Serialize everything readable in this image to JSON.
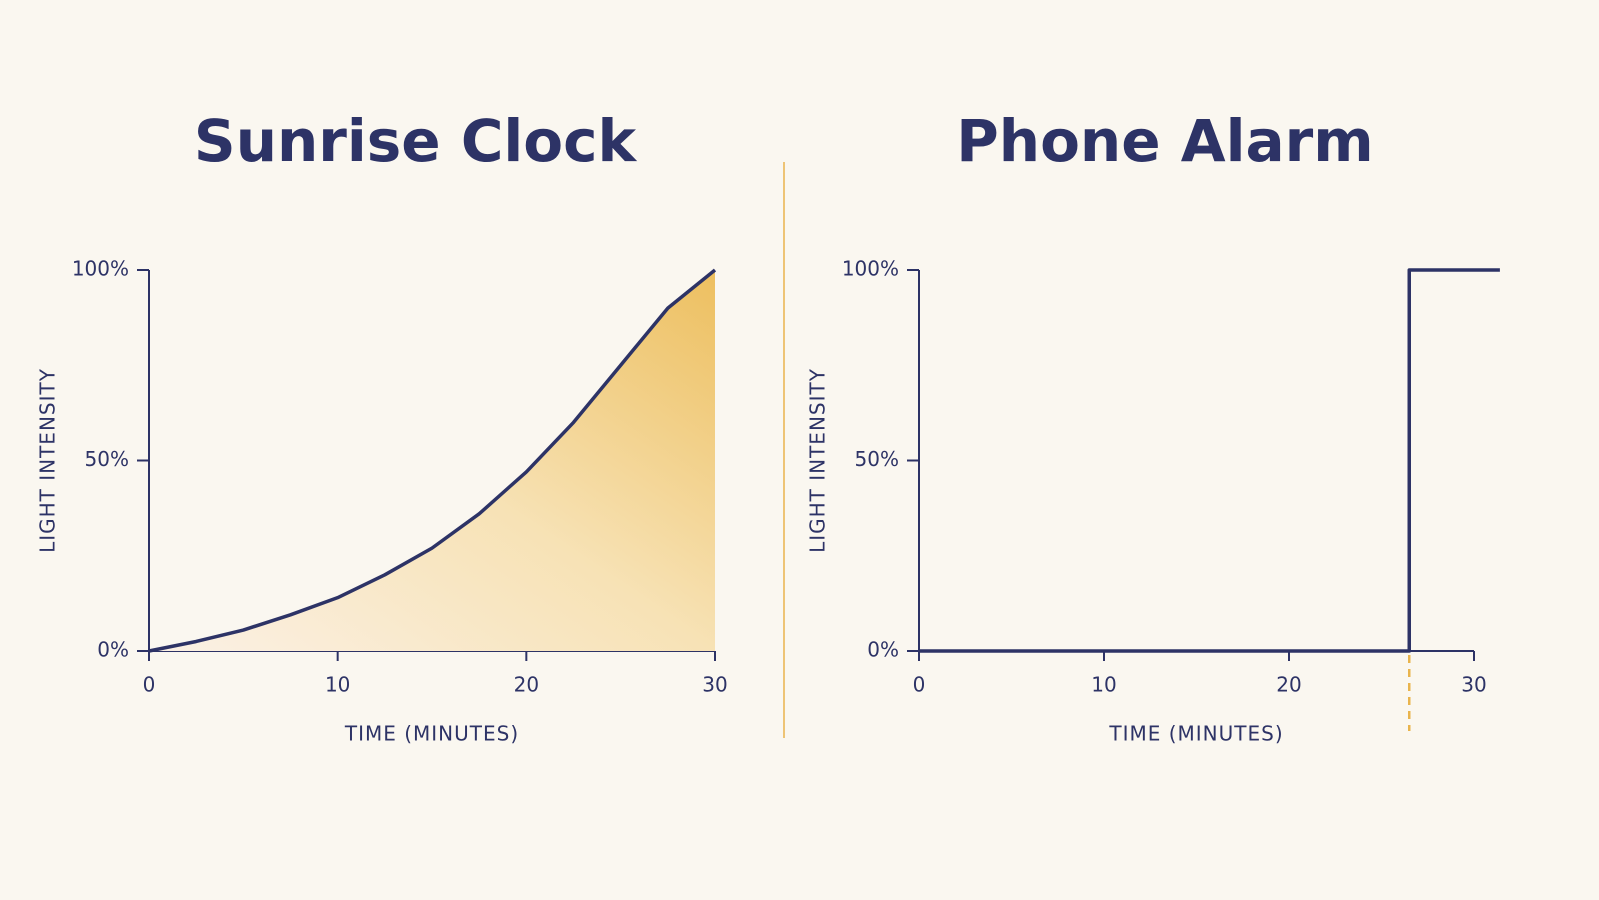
{
  "chart_data": [
    {
      "type": "line",
      "title": "Sunrise Clock",
      "x_label": "TIME (MINUTES)",
      "y_label": "LIGHT INTENSITY",
      "xlim": [
        0,
        30
      ],
      "xticks": [
        0,
        10,
        20,
        30
      ],
      "ylim": [
        0,
        100
      ],
      "yticks": [
        {
          "value": 0,
          "label": "0%"
        },
        {
          "value": 50,
          "label": "50%"
        },
        {
          "value": 100,
          "label": "100%"
        }
      ],
      "area": true,
      "series": [
        {
          "color": "#2d3366",
          "x": [
            0,
            2.5,
            5,
            7.5,
            10,
            12.5,
            15,
            17.5,
            20,
            22.5,
            25,
            27.5,
            30
          ],
          "values": [
            0,
            2.5,
            5.5,
            9.5,
            14,
            20,
            27,
            36,
            47,
            60,
            75,
            90,
            100
          ]
        }
      ]
    },
    {
      "type": "line",
      "title": "Phone Alarm",
      "x_label": "TIME (MINUTES)",
      "y_label": "LIGHT INTENSITY",
      "xlim": [
        0,
        30
      ],
      "xticks": [
        0,
        10,
        20,
        30
      ],
      "ylim": [
        0,
        100
      ],
      "yticks": [
        {
          "value": 0,
          "label": "0%"
        },
        {
          "value": 50,
          "label": "50%"
        },
        {
          "value": 100,
          "label": "100%"
        }
      ],
      "area": false,
      "marker_color": "#e9b44c",
      "series": [
        {
          "color": "#2d3366",
          "x": [
            0,
            26.5,
            26.5,
            31.4
          ],
          "values": [
            0,
            0,
            100,
            100
          ]
        }
      ]
    }
  ]
}
